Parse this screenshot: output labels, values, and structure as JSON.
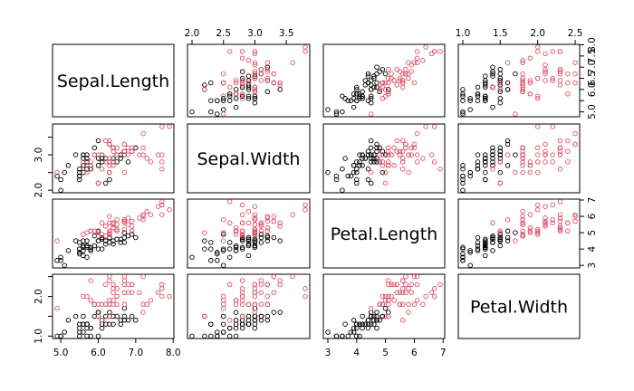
{
  "chart_data": {
    "type": "scatter",
    "kind": "scatterplot-matrix",
    "variables": [
      "Sepal.Length",
      "Sepal.Width",
      "Petal.Length",
      "Petal.Width"
    ],
    "ranges": [
      [
        4.9,
        7.9
      ],
      [
        2.0,
        3.8
      ],
      [
        3.0,
        6.9
      ],
      [
        1.0,
        2.5
      ]
    ],
    "ticks": [
      [
        5.0,
        6.0,
        7.0,
        8.0
      ],
      [
        2.0,
        2.5,
        3.0,
        3.5
      ],
      [
        3,
        4,
        5,
        6,
        7
      ],
      [
        1.0,
        1.5,
        2.0,
        2.5
      ]
    ],
    "tick_labels": [
      [
        "5.0",
        "6.0",
        "7.0",
        "8.0"
      ],
      [
        "2.0",
        "2.5",
        "3.0",
        "3.5"
      ],
      [
        "3",
        "4",
        "5",
        "6",
        "7"
      ],
      [
        "1.0",
        "1.5",
        "2.0",
        "2.5"
      ]
    ],
    "left_axis_ticks": [
      [],
      [
        2.0,
        3.0
      ],
      [],
      [
        1.0,
        2.0
      ]
    ],
    "left_axis_labels": [
      [],
      [
        "2.0",
        "3.0"
      ],
      [],
      [
        "1.0",
        "2.0"
      ]
    ],
    "right_axis_ticks": [
      [
        5.0,
        5.5,
        6.0,
        6.5,
        7.0,
        7.5,
        8.0
      ],
      [],
      [
        3,
        4,
        5,
        6,
        7
      ],
      []
    ],
    "right_axis_labels": [
      [
        "5.0",
        "",
        "6.0",
        "6.5",
        "7.0",
        "7.5",
        "8.0"
      ],
      [],
      [
        "3",
        "4",
        "5",
        "6",
        "7"
      ],
      []
    ],
    "top_axis_columns": [
      1,
      3
    ],
    "bottom_axis_columns": [
      0,
      2
    ],
    "right_axis_rows": [
      0,
      2
    ],
    "left_axis_rows": [
      1,
      3
    ],
    "series": [
      {
        "color": "#000000",
        "points": [
          [
            7.0,
            3.2,
            4.7,
            1.4
          ],
          [
            6.4,
            3.2,
            4.5,
            1.5
          ],
          [
            6.9,
            3.1,
            4.9,
            1.5
          ],
          [
            5.5,
            2.3,
            4.0,
            1.3
          ],
          [
            6.5,
            2.8,
            4.6,
            1.5
          ],
          [
            5.7,
            2.8,
            4.5,
            1.3
          ],
          [
            6.3,
            3.3,
            4.7,
            1.6
          ],
          [
            4.9,
            2.4,
            3.3,
            1.0
          ],
          [
            6.6,
            2.9,
            4.6,
            1.3
          ],
          [
            5.2,
            2.7,
            3.9,
            1.4
          ],
          [
            5.0,
            2.0,
            3.5,
            1.0
          ],
          [
            5.9,
            3.0,
            4.2,
            1.5
          ],
          [
            6.0,
            2.2,
            4.0,
            1.0
          ],
          [
            6.1,
            2.9,
            4.7,
            1.4
          ],
          [
            5.6,
            2.9,
            3.6,
            1.3
          ],
          [
            6.7,
            3.1,
            4.4,
            1.4
          ],
          [
            5.6,
            3.0,
            4.5,
            1.5
          ],
          [
            5.8,
            2.7,
            4.1,
            1.0
          ],
          [
            6.2,
            2.2,
            4.5,
            1.5
          ],
          [
            5.6,
            2.5,
            3.9,
            1.1
          ],
          [
            5.9,
            3.2,
            4.8,
            1.8
          ],
          [
            6.1,
            2.8,
            4.0,
            1.3
          ],
          [
            6.3,
            2.5,
            4.9,
            1.5
          ],
          [
            6.1,
            2.8,
            4.7,
            1.2
          ],
          [
            6.4,
            2.9,
            4.3,
            1.3
          ],
          [
            6.6,
            3.0,
            4.4,
            1.4
          ],
          [
            6.8,
            2.8,
            4.8,
            1.4
          ],
          [
            6.7,
            3.0,
            5.0,
            1.7
          ],
          [
            6.0,
            2.9,
            4.5,
            1.5
          ],
          [
            5.7,
            2.6,
            3.5,
            1.0
          ],
          [
            5.5,
            2.4,
            3.8,
            1.1
          ],
          [
            5.5,
            2.4,
            3.7,
            1.0
          ],
          [
            5.8,
            2.7,
            3.9,
            1.2
          ],
          [
            6.0,
            2.7,
            5.1,
            1.6
          ],
          [
            5.4,
            3.0,
            4.5,
            1.5
          ],
          [
            6.0,
            3.4,
            4.5,
            1.6
          ],
          [
            6.7,
            3.1,
            4.7,
            1.5
          ],
          [
            6.3,
            2.3,
            4.4,
            1.3
          ],
          [
            5.6,
            3.0,
            4.1,
            1.3
          ],
          [
            5.5,
            2.5,
            4.0,
            1.3
          ],
          [
            5.5,
            2.6,
            4.4,
            1.2
          ],
          [
            6.1,
            3.0,
            4.6,
            1.4
          ],
          [
            5.8,
            2.6,
            4.0,
            1.2
          ],
          [
            5.0,
            2.3,
            3.3,
            1.0
          ],
          [
            5.6,
            2.7,
            4.2,
            1.3
          ],
          [
            5.7,
            3.0,
            4.2,
            1.2
          ],
          [
            5.7,
            2.9,
            4.2,
            1.3
          ],
          [
            6.2,
            2.9,
            4.3,
            1.3
          ],
          [
            5.1,
            2.5,
            3.0,
            1.1
          ],
          [
            5.7,
            2.8,
            4.1,
            1.3
          ]
        ]
      },
      {
        "color": "#df536b",
        "points": [
          [
            6.3,
            3.3,
            6.0,
            2.5
          ],
          [
            5.8,
            2.7,
            5.1,
            1.9
          ],
          [
            7.1,
            3.0,
            5.9,
            2.1
          ],
          [
            6.3,
            2.9,
            5.6,
            1.8
          ],
          [
            6.5,
            3.0,
            5.8,
            2.2
          ],
          [
            7.6,
            3.0,
            6.6,
            2.1
          ],
          [
            4.9,
            2.5,
            4.5,
            1.7
          ],
          [
            7.3,
            2.9,
            6.3,
            1.8
          ],
          [
            6.7,
            2.5,
            5.8,
            1.8
          ],
          [
            7.2,
            3.6,
            6.1,
            2.5
          ],
          [
            6.5,
            3.2,
            5.1,
            2.0
          ],
          [
            6.4,
            2.7,
            5.3,
            1.9
          ],
          [
            6.8,
            3.0,
            5.5,
            2.1
          ],
          [
            5.7,
            2.5,
            5.0,
            2.0
          ],
          [
            5.8,
            2.8,
            5.1,
            2.4
          ],
          [
            6.4,
            3.2,
            5.3,
            2.3
          ],
          [
            6.5,
            3.0,
            5.5,
            1.8
          ],
          [
            7.7,
            3.8,
            6.7,
            2.2
          ],
          [
            7.7,
            2.6,
            6.9,
            2.3
          ],
          [
            6.0,
            2.2,
            5.0,
            1.5
          ],
          [
            6.9,
            3.2,
            5.7,
            2.3
          ],
          [
            5.6,
            2.8,
            4.9,
            2.0
          ],
          [
            7.7,
            2.8,
            6.7,
            2.0
          ],
          [
            6.3,
            2.7,
            4.9,
            1.8
          ],
          [
            6.7,
            3.3,
            5.7,
            2.1
          ],
          [
            7.2,
            3.2,
            6.0,
            1.8
          ],
          [
            6.2,
            2.8,
            4.8,
            1.8
          ],
          [
            6.1,
            3.0,
            4.9,
            1.8
          ],
          [
            6.4,
            2.8,
            5.6,
            2.1
          ],
          [
            7.2,
            3.0,
            5.8,
            1.6
          ],
          [
            7.4,
            2.8,
            6.1,
            1.9
          ],
          [
            7.9,
            3.8,
            6.4,
            2.0
          ],
          [
            6.4,
            2.8,
            5.6,
            2.2
          ],
          [
            6.3,
            2.8,
            5.1,
            1.5
          ],
          [
            6.1,
            2.6,
            5.6,
            1.4
          ],
          [
            7.7,
            3.0,
            6.1,
            2.3
          ],
          [
            6.3,
            3.4,
            5.6,
            2.4
          ],
          [
            6.4,
            3.1,
            5.5,
            1.8
          ],
          [
            6.0,
            3.0,
            4.8,
            1.8
          ],
          [
            6.9,
            3.1,
            5.4,
            2.1
          ],
          [
            6.7,
            3.1,
            5.6,
            2.4
          ],
          [
            6.9,
            3.1,
            5.1,
            2.3
          ],
          [
            5.8,
            2.7,
            5.1,
            1.9
          ],
          [
            6.8,
            3.2,
            5.9,
            2.3
          ],
          [
            6.7,
            3.3,
            5.7,
            2.5
          ],
          [
            6.7,
            3.0,
            5.2,
            2.3
          ],
          [
            6.3,
            2.5,
            5.0,
            1.9
          ],
          [
            6.5,
            3.0,
            5.2,
            2.0
          ],
          [
            6.2,
            3.4,
            5.4,
            2.3
          ],
          [
            5.9,
            3.0,
            5.1,
            1.8
          ]
        ]
      }
    ]
  }
}
